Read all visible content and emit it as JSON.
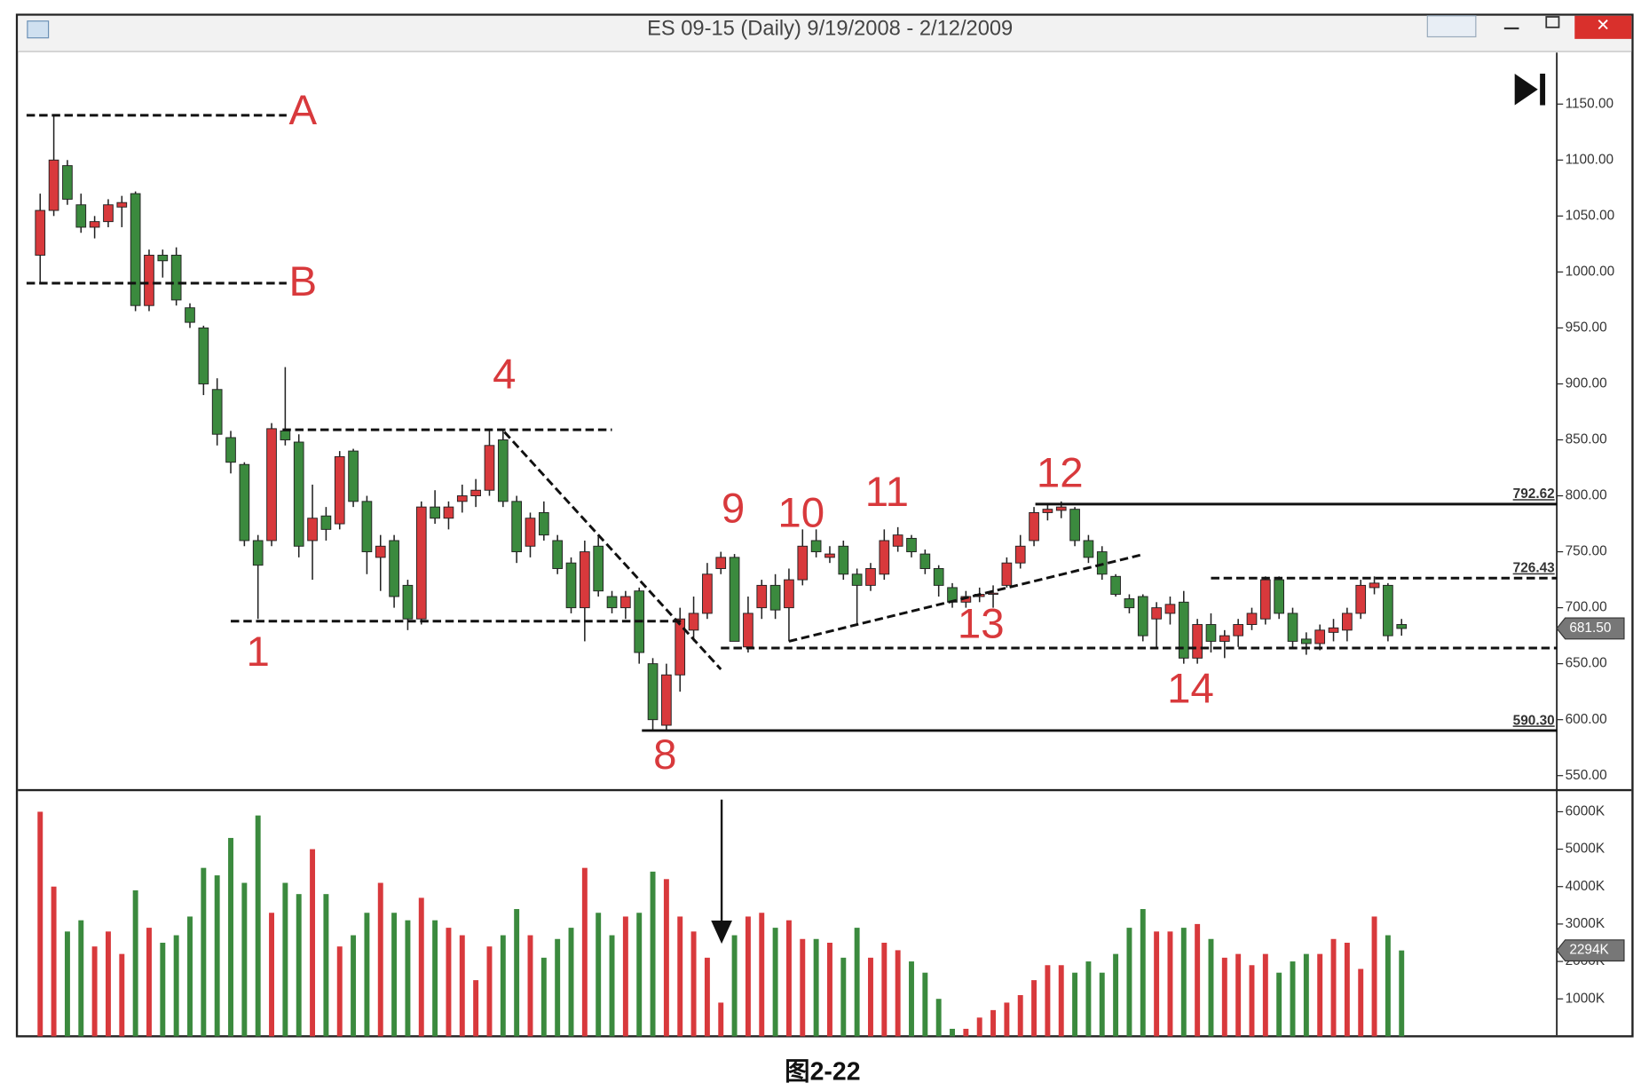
{
  "caption": "图2-22",
  "chart_data": {
    "type": "candlestick",
    "title": "ES 09-15 (Daily)  9/19/2008 - 2/12/2009",
    "up_color": "#d8393c",
    "down_color": "#3b8a3e",
    "xlim": [
      -1.4,
      111.4
    ],
    "ylim": [
      538,
      1196
    ],
    "yticks": [
      {
        "value": 550,
        "label": "550.00"
      },
      {
        "value": 600,
        "label": "600.00"
      },
      {
        "value": 650,
        "label": "650.00"
      },
      {
        "value": 700,
        "label": "700.00"
      },
      {
        "value": 750,
        "label": "750.00"
      },
      {
        "value": 800,
        "label": "800.00"
      },
      {
        "value": 850,
        "label": "850.00"
      },
      {
        "value": 900,
        "label": "900.00"
      },
      {
        "value": 950,
        "label": "950.00"
      },
      {
        "value": 1000,
        "label": "1000.00"
      },
      {
        "value": 1050,
        "label": "1050.00"
      },
      {
        "value": 1100,
        "label": "1100.00"
      },
      {
        "value": 1150,
        "label": "1150.00"
      }
    ],
    "candles": [
      [
        1015,
        1070,
        990,
        1055
      ],
      [
        1055,
        1140,
        1050,
        1100
      ],
      [
        1095,
        1100,
        1060,
        1065
      ],
      [
        1060,
        1070,
        1035,
        1040
      ],
      [
        1040,
        1050,
        1030,
        1045
      ],
      [
        1045,
        1065,
        1040,
        1060
      ],
      [
        1058,
        1068,
        1040,
        1062
      ],
      [
        1070,
        1072,
        965,
        970
      ],
      [
        970,
        1020,
        965,
        1015
      ],
      [
        1015,
        1020,
        995,
        1010
      ],
      [
        1015,
        1022,
        970,
        975
      ],
      [
        968,
        972,
        950,
        955
      ],
      [
        950,
        952,
        890,
        900
      ],
      [
        895,
        905,
        845,
        855
      ],
      [
        852,
        858,
        820,
        830
      ],
      [
        828,
        830,
        755,
        760
      ],
      [
        760,
        765,
        690,
        738
      ],
      [
        760,
        865,
        755,
        860
      ],
      [
        858,
        915,
        845,
        850
      ],
      [
        848,
        855,
        745,
        755
      ],
      [
        760,
        810,
        725,
        780
      ],
      [
        782,
        790,
        760,
        770
      ],
      [
        775,
        840,
        770,
        835
      ],
      [
        840,
        842,
        790,
        795
      ],
      [
        795,
        800,
        730,
        750
      ],
      [
        745,
        765,
        715,
        755
      ],
      [
        760,
        765,
        700,
        710
      ],
      [
        720,
        725,
        680,
        690
      ],
      [
        690,
        795,
        685,
        790
      ],
      [
        790,
        805,
        775,
        780
      ],
      [
        780,
        795,
        770,
        790
      ],
      [
        795,
        810,
        785,
        800
      ],
      [
        800,
        815,
        790,
        805
      ],
      [
        805,
        860,
        800,
        845
      ],
      [
        850,
        858,
        790,
        795
      ],
      [
        795,
        800,
        740,
        750
      ],
      [
        755,
        785,
        745,
        780
      ],
      [
        785,
        795,
        760,
        765
      ],
      [
        760,
        765,
        730,
        735
      ],
      [
        740,
        745,
        695,
        700
      ],
      [
        700,
        760,
        670,
        750
      ],
      [
        755,
        765,
        710,
        715
      ],
      [
        710,
        715,
        695,
        700
      ],
      [
        700,
        715,
        690,
        710
      ],
      [
        715,
        718,
        650,
        660
      ],
      [
        650,
        655,
        590,
        600
      ],
      [
        595,
        650,
        590,
        640
      ],
      [
        640,
        700,
        625,
        690
      ],
      [
        680,
        710,
        670,
        695
      ],
      [
        695,
        740,
        690,
        730
      ],
      [
        735,
        750,
        730,
        745
      ],
      [
        745,
        748,
        670,
        670
      ],
      [
        665,
        710,
        660,
        695
      ],
      [
        700,
        725,
        690,
        720
      ],
      [
        720,
        730,
        690,
        698
      ],
      [
        700,
        735,
        670,
        725
      ],
      [
        725,
        770,
        720,
        755
      ],
      [
        760,
        770,
        745,
        750
      ],
      [
        745,
        755,
        740,
        748
      ],
      [
        755,
        760,
        725,
        730
      ],
      [
        730,
        735,
        685,
        720
      ],
      [
        720,
        740,
        715,
        735
      ],
      [
        730,
        770,
        725,
        760
      ],
      [
        755,
        772,
        750,
        765
      ],
      [
        762,
        765,
        745,
        750
      ],
      [
        748,
        752,
        730,
        735
      ],
      [
        735,
        738,
        710,
        720
      ],
      [
        718,
        722,
        700,
        705
      ],
      [
        705,
        715,
        700,
        710
      ],
      [
        710,
        718,
        705,
        712
      ],
      [
        712,
        720,
        700,
        713
      ],
      [
        720,
        745,
        718,
        740
      ],
      [
        740,
        765,
        735,
        755
      ],
      [
        760,
        790,
        755,
        785
      ],
      [
        785,
        792,
        778,
        788
      ],
      [
        787,
        795,
        780,
        790
      ],
      [
        788,
        790,
        755,
        760
      ],
      [
        760,
        765,
        740,
        745
      ],
      [
        750,
        755,
        725,
        730
      ],
      [
        728,
        730,
        710,
        712
      ],
      [
        708,
        712,
        695,
        700
      ],
      [
        710,
        712,
        670,
        675
      ],
      [
        690,
        705,
        665,
        700
      ],
      [
        695,
        710,
        685,
        703
      ],
      [
        705,
        715,
        650,
        655
      ],
      [
        655,
        690,
        650,
        685
      ],
      [
        685,
        695,
        660,
        670
      ],
      [
        670,
        680,
        655,
        675
      ],
      [
        675,
        690,
        665,
        685
      ],
      [
        685,
        700,
        680,
        695
      ],
      [
        690,
        728,
        685,
        725
      ],
      [
        725,
        728,
        690,
        695
      ],
      [
        695,
        700,
        665,
        670
      ],
      [
        672,
        678,
        658,
        668
      ],
      [
        668,
        685,
        662,
        680
      ],
      [
        678,
        690,
        670,
        682
      ],
      [
        680,
        700,
        670,
        695
      ],
      [
        695,
        725,
        690,
        720
      ],
      [
        718,
        728,
        712,
        722
      ],
      [
        720,
        722,
        670,
        675
      ],
      [
        685,
        690,
        675,
        681.5
      ]
    ],
    "last_price": {
      "value": 681.5,
      "label": "681.50"
    },
    "levels": [
      {
        "value": 792.62,
        "label": "792.62",
        "start": 73.1,
        "style": "solid"
      },
      {
        "value": 726.43,
        "label": "726.43",
        "start": 86,
        "style": "dashed"
      },
      {
        "value": 590.3,
        "label": "590.30",
        "start": 44.2,
        "style": "solid"
      }
    ],
    "lines": [
      {
        "x": [
          -1,
          18.1
        ],
        "y": [
          1140,
          1140
        ]
      },
      {
        "x": [
          -1,
          18.1
        ],
        "y": [
          990,
          990
        ]
      },
      {
        "x": [
          17.8,
          42
        ],
        "y": [
          859,
          859
        ]
      },
      {
        "x": [
          14,
          47.3
        ],
        "y": [
          688,
          688
        ]
      },
      {
        "x": [
          34.1,
          50
        ],
        "y": [
          857,
          645
        ]
      },
      {
        "x": [
          50,
          111.4
        ],
        "y": [
          664,
          664
        ]
      },
      {
        "x": [
          55,
          80.8
        ],
        "y": [
          670,
          747
        ]
      }
    ],
    "annotations": [
      {
        "text": "A",
        "x": 19.3,
        "y": 1142
      },
      {
        "text": "B",
        "x": 19.3,
        "y": 989
      },
      {
        "text": "1",
        "x": 16,
        "y": 658
      },
      {
        "text": "4",
        "x": 34.1,
        "y": 906
      },
      {
        "text": "8",
        "x": 45.9,
        "y": 566
      },
      {
        "text": "9",
        "x": 50.9,
        "y": 786
      },
      {
        "text": "10",
        "x": 55.9,
        "y": 782
      },
      {
        "text": "11",
        "x": 62.2,
        "y": 801
      },
      {
        "text": "12",
        "x": 74.9,
        "y": 818
      },
      {
        "text": "13",
        "x": 69.1,
        "y": 683
      },
      {
        "text": "14",
        "x": 84.5,
        "y": 625
      }
    ],
    "volume": {
      "ylim": [
        0,
        6550
      ],
      "yticks": [
        {
          "value": 1000,
          "label": "1000K"
        },
        {
          "value": 2000,
          "label": "2000K"
        },
        {
          "value": 3000,
          "label": "3000K"
        },
        {
          "value": 4000,
          "label": "4000K"
        },
        {
          "value": 5000,
          "label": "5000K"
        },
        {
          "value": 6000,
          "label": "6000K"
        }
      ],
      "values": [
        6000,
        4000,
        2800,
        3100,
        2400,
        2800,
        2200,
        3900,
        2900,
        2500,
        2700,
        3200,
        4500,
        4300,
        5300,
        4100,
        5900,
        3300,
        4100,
        3800,
        5000,
        3800,
        2400,
        2700,
        3300,
        4100,
        3300,
        3100,
        3700,
        3100,
        2900,
        2700,
        1500,
        2400,
        2700,
        3400,
        2700,
        2100,
        2600,
        2900,
        4500,
        3300,
        2700,
        3200,
        3300,
        4400,
        4200,
        3200,
        2800,
        2100,
        900,
        2700,
        3200,
        3300,
        2900,
        3100,
        2600,
        2600,
        2500,
        2100,
        2900,
        2100,
        2500,
        2300,
        2000,
        1700,
        1000,
        200,
        200,
        500,
        700,
        900,
        1100,
        1500,
        1900,
        1900,
        1700,
        2000,
        1700,
        2200,
        2900,
        3400,
        2800,
        2800,
        2900,
        3000,
        2600,
        2100,
        2200,
        1900,
        2200,
        1700,
        2000,
        2200,
        2200,
        2600,
        2500,
        1800,
        3200,
        2700,
        2294
      ],
      "last": {
        "value": 2294,
        "label": "2294K"
      }
    }
  }
}
